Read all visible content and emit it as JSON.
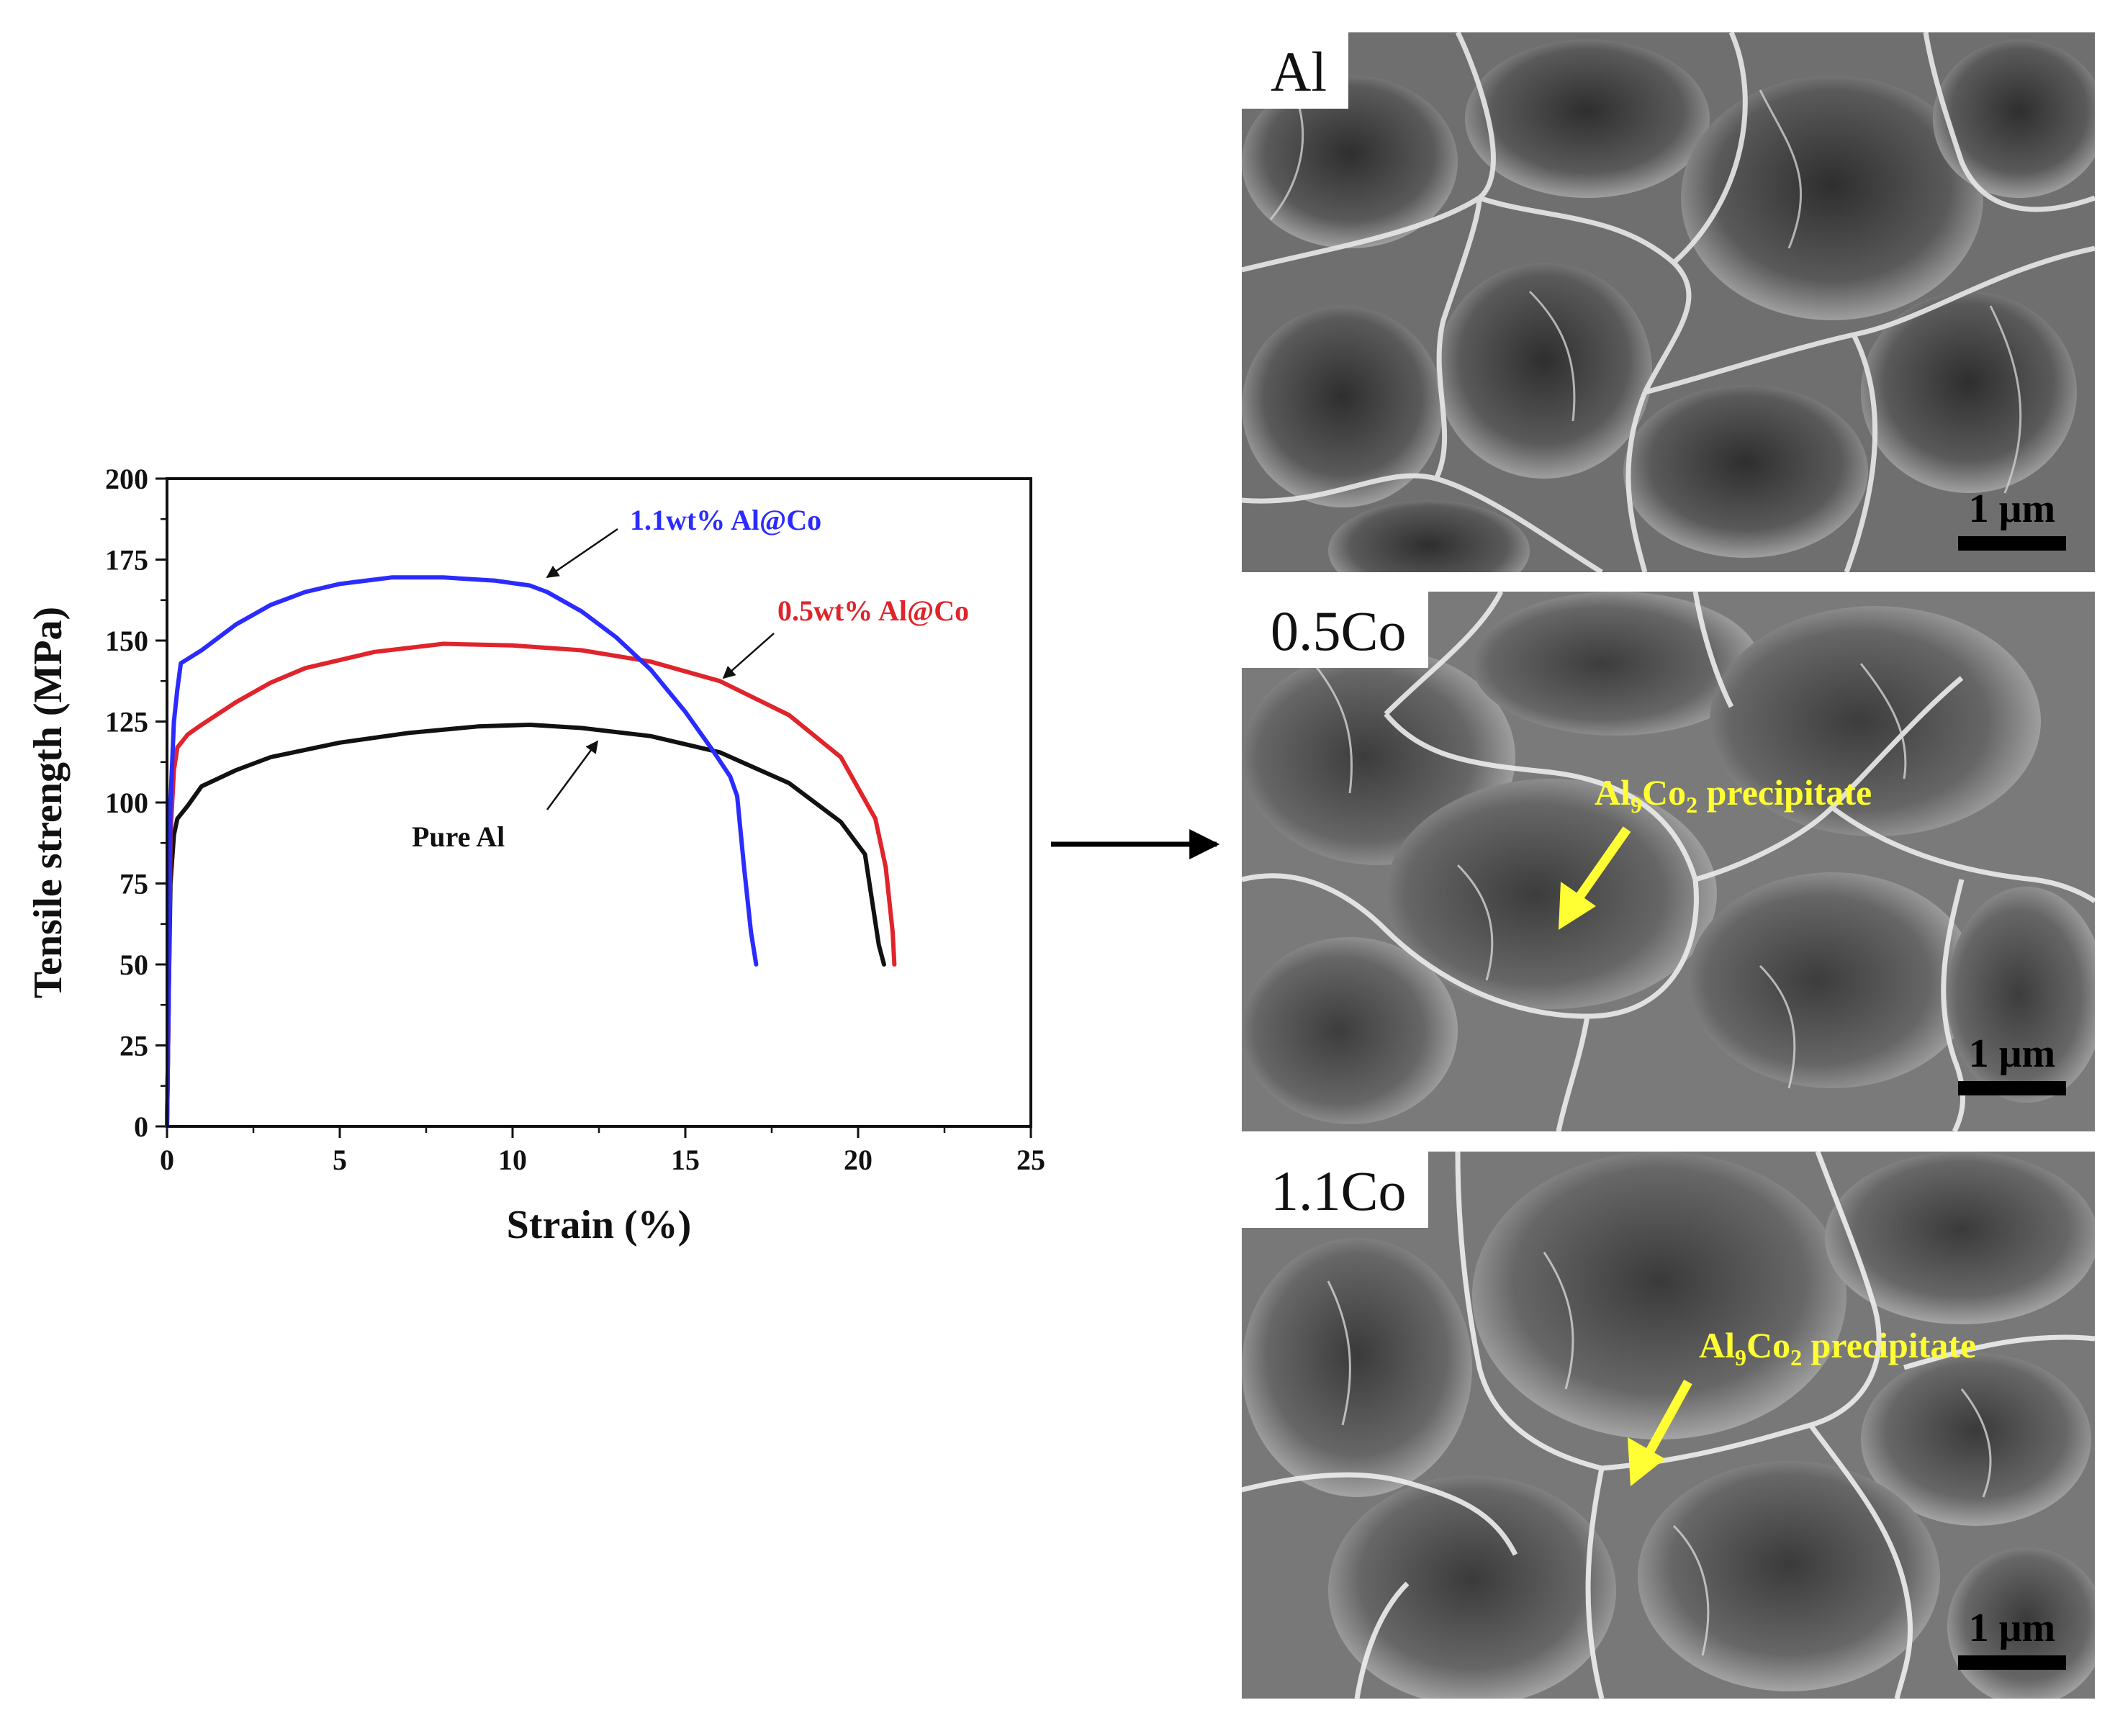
{
  "chart_data": {
    "type": "line",
    "xlabel": "Strain (%)",
    "ylabel": "Tensile strength (MPa)",
    "xlim": [
      0,
      25
    ],
    "ylim": [
      0,
      200
    ],
    "xticks": [
      "0",
      "5",
      "10",
      "15",
      "20",
      "25"
    ],
    "yticks": [
      "0",
      "25",
      "50",
      "75",
      "100",
      "125",
      "150",
      "175",
      "200"
    ],
    "grid": false,
    "series": [
      {
        "name": "Pure Al",
        "color": "#111111",
        "points": [
          [
            0,
            0
          ],
          [
            0.05,
            40
          ],
          [
            0.1,
            75
          ],
          [
            0.2,
            90
          ],
          [
            0.3,
            95
          ],
          [
            0.6,
            99
          ],
          [
            1,
            105
          ],
          [
            2,
            110
          ],
          [
            3,
            114
          ],
          [
            5,
            118.5
          ],
          [
            7,
            121.5
          ],
          [
            9,
            123.5
          ],
          [
            10.5,
            124
          ],
          [
            12,
            123
          ],
          [
            14,
            120.5
          ],
          [
            16,
            115.5
          ],
          [
            18,
            106
          ],
          [
            19.5,
            94
          ],
          [
            20.2,
            84
          ],
          [
            20.4,
            70
          ],
          [
            20.6,
            56
          ],
          [
            20.75,
            50
          ]
        ]
      },
      {
        "name": "0.5wt% Al@Co",
        "color": "#e0242b",
        "points": [
          [
            0,
            0
          ],
          [
            0.05,
            40
          ],
          [
            0.1,
            90
          ],
          [
            0.2,
            110
          ],
          [
            0.3,
            117
          ],
          [
            0.6,
            121
          ],
          [
            1,
            124
          ],
          [
            2,
            131
          ],
          [
            3,
            137
          ],
          [
            4,
            141.5
          ],
          [
            6,
            146.5
          ],
          [
            8,
            149
          ],
          [
            10,
            148.5
          ],
          [
            12,
            147
          ],
          [
            14,
            143.5
          ],
          [
            16,
            137.5
          ],
          [
            18,
            127
          ],
          [
            19.5,
            114
          ],
          [
            20.5,
            95
          ],
          [
            20.8,
            80
          ],
          [
            21,
            60
          ],
          [
            21.05,
            50
          ]
        ]
      },
      {
        "name": "1.1wt% Al@Co",
        "color": "#2b2bff",
        "points": [
          [
            0,
            0
          ],
          [
            0.05,
            40
          ],
          [
            0.1,
            100
          ],
          [
            0.2,
            125
          ],
          [
            0.3,
            135
          ],
          [
            0.4,
            143
          ],
          [
            0.7,
            145
          ],
          [
            1,
            147
          ],
          [
            2,
            155
          ],
          [
            3,
            161
          ],
          [
            4,
            165
          ],
          [
            5,
            167.5
          ],
          [
            6.5,
            169.5
          ],
          [
            8,
            169.5
          ],
          [
            9.5,
            168.5
          ],
          [
            10.5,
            167
          ],
          [
            11,
            165
          ],
          [
            12,
            159
          ],
          [
            13,
            151
          ],
          [
            14,
            141
          ],
          [
            15,
            128
          ],
          [
            15.8,
            116
          ],
          [
            16.3,
            108
          ],
          [
            16.5,
            102
          ],
          [
            16.7,
            80
          ],
          [
            16.9,
            60
          ],
          [
            17.05,
            50
          ]
        ]
      }
    ],
    "annotations": [
      "1.1wt% Al@Co",
      "0.5wt% Al@Co",
      "Pure Al"
    ]
  },
  "panels": [
    {
      "label": "Al",
      "scale": "1 μm"
    },
    {
      "label": "0.5Co",
      "scale": "1 μm",
      "precipitate": {
        "main": "Al",
        "sub1": "9",
        "mid": "Co",
        "sub2": "2",
        "rest": " precipitate"
      }
    },
    {
      "label": "1.1Co",
      "scale": "1 μm",
      "precipitate": {
        "main": "Al",
        "sub1": "9",
        "mid": "Co",
        "sub2": "2",
        "rest": " precipitate"
      }
    }
  ]
}
